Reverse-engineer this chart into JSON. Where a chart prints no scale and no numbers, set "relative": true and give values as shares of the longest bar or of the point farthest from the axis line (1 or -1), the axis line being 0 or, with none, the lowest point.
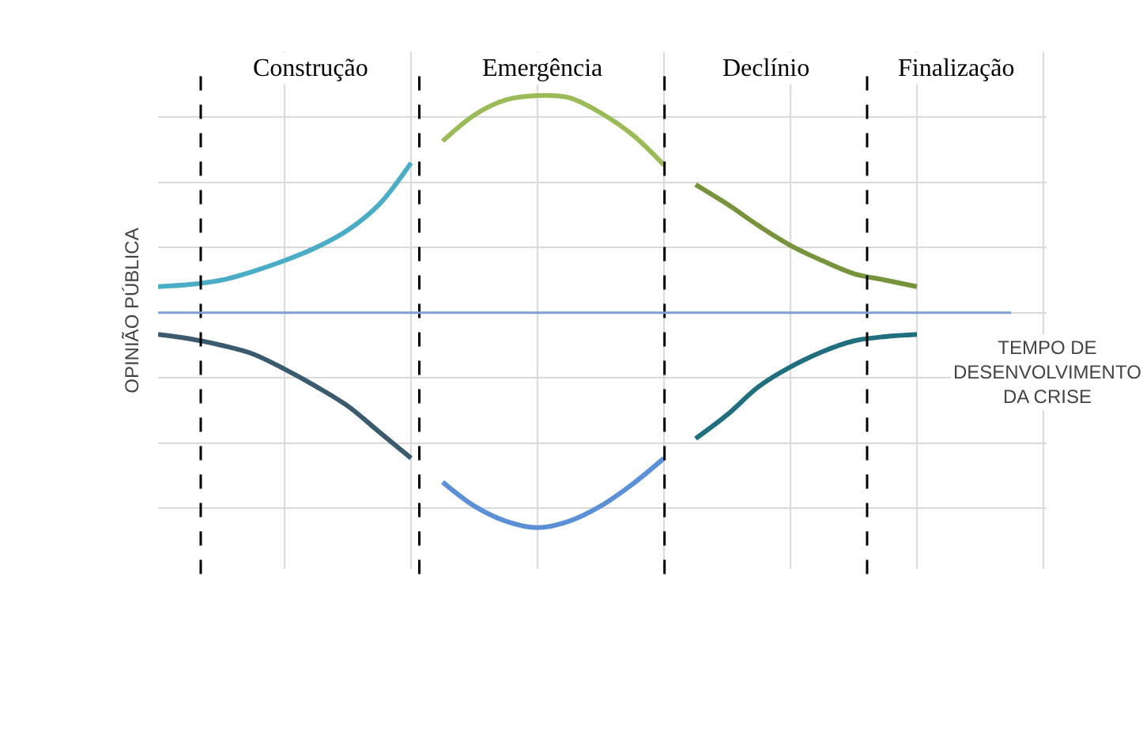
{
  "chart_data": {
    "type": "line",
    "relative": true,
    "xlabel": "TEMPO DE DESENVOLVIMENTO DA CRISE",
    "ylabel": "OPINIÃO PÚBLICA",
    "categories": [
      null,
      null,
      null,
      null,
      null,
      null,
      null,
      null,
      null,
      null,
      null,
      null,
      null,
      null,
      null,
      null,
      null,
      null,
      null,
      null,
      null,
      null,
      null,
      null,
      null,
      null,
      null,
      null,
      null
    ],
    "series": [
      {
        "color": "#4bacc6",
        "values": [
          0.12,
          0.13,
          0.15,
          0.19,
          0.24,
          0.3,
          0.38,
          0.5,
          0.69,
          null,
          null,
          null,
          null,
          null,
          null,
          null,
          null,
          null,
          null,
          null,
          null,
          null,
          null,
          null,
          null,
          null,
          null,
          null,
          null
        ]
      },
      {
        "color": "#9bbb59",
        "values": [
          null,
          null,
          null,
          null,
          null,
          null,
          null,
          null,
          null,
          0.79,
          0.91,
          0.98,
          1.0,
          0.99,
          0.92,
          0.82,
          0.68,
          null,
          null,
          null,
          null,
          null,
          null,
          null,
          null,
          null,
          null,
          null,
          null
        ]
      },
      {
        "color": "#77933c",
        "values": [
          null,
          null,
          null,
          null,
          null,
          null,
          null,
          null,
          null,
          null,
          null,
          null,
          null,
          null,
          null,
          null,
          null,
          0.59,
          0.5,
          0.4,
          0.31,
          0.24,
          0.18,
          0.15,
          0.12,
          null,
          null,
          null,
          null
        ]
      },
      {
        "color": "#3b5a6e",
        "values": [
          -0.1,
          -0.12,
          -0.15,
          -0.19,
          -0.26,
          -0.34,
          -0.43,
          -0.55,
          -0.67,
          null,
          null,
          null,
          null,
          null,
          null,
          null,
          null,
          null,
          null,
          null,
          null,
          null,
          null,
          null,
          null,
          null,
          null,
          null,
          null
        ]
      },
      {
        "color": "#5b8fd6",
        "values": [
          null,
          null,
          null,
          null,
          null,
          null,
          null,
          null,
          null,
          -0.78,
          -0.89,
          -0.96,
          -0.99,
          -0.96,
          -0.89,
          -0.79,
          -0.67,
          null,
          null,
          null,
          null,
          null,
          null,
          null,
          null,
          null,
          null,
          null,
          null
        ]
      },
      {
        "color": "#1f6f7f",
        "values": [
          null,
          null,
          null,
          null,
          null,
          null,
          null,
          null,
          null,
          null,
          null,
          null,
          null,
          null,
          null,
          null,
          null,
          -0.58,
          -0.47,
          -0.34,
          -0.25,
          -0.18,
          -0.13,
          -0.11,
          -0.1,
          null,
          null,
          null,
          null
        ]
      }
    ],
    "ref_lines": [
      {
        "axis": "y",
        "value": 0,
        "color": "#7f9fd4",
        "line_style": "solid"
      }
    ],
    "annotations": [
      "Construção",
      "Emergência",
      "Declínio",
      "Finalização"
    ],
    "grid": true,
    "marker": "none",
    "line_style": "solid"
  }
}
